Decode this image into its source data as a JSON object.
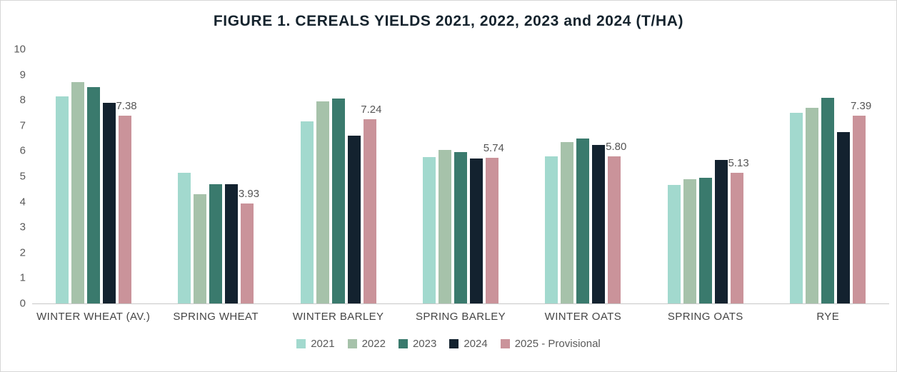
{
  "title": "FIGURE 1. CEREALS YIELDS 2021, 2022, 2023 and 2024 (T/HA)",
  "chart_data": {
    "type": "bar",
    "title": "FIGURE 1. CEREALS YIELDS 2021, 2022, 2023 and 2024 (T/HA)",
    "xlabel": "",
    "ylabel": "",
    "ylim": [
      0,
      10
    ],
    "yticks": [
      0,
      1,
      2,
      3,
      4,
      5,
      6,
      7,
      8,
      9,
      10
    ],
    "grid": false,
    "legend_position": "bottom",
    "categories": [
      "WINTER WHEAT (AV.)",
      "SPRING WHEAT",
      "WINTER BARLEY",
      "SPRING BARLEY",
      "WINTER OATS",
      "SPRING OATS",
      "RYE"
    ],
    "series": [
      {
        "name": "2021",
        "color": "#a2d9ce",
        "values": [
          8.15,
          5.15,
          7.15,
          5.75,
          5.8,
          4.65,
          7.5
        ]
      },
      {
        "name": "2022",
        "color": "#a6c2aa",
        "values": [
          8.7,
          4.3,
          7.95,
          6.05,
          6.35,
          4.9,
          7.7
        ]
      },
      {
        "name": "2023",
        "color": "#3a7a6d",
        "values": [
          8.5,
          4.7,
          8.05,
          5.95,
          6.5,
          4.95,
          8.1
        ]
      },
      {
        "name": "2024",
        "color": "#13222f",
        "values": [
          7.9,
          4.7,
          6.6,
          5.7,
          6.25,
          5.65,
          6.75
        ]
      },
      {
        "name": "2025 - Provisional",
        "color": "#ca939a",
        "values": [
          7.38,
          3.93,
          7.24,
          5.74,
          5.8,
          5.13,
          7.39
        ],
        "labels": [
          "7.38",
          "3.93",
          "7.24",
          "5.74",
          "5.80",
          "5.13",
          "7.39"
        ]
      }
    ],
    "data_labels_on_series": "2025 - Provisional"
  }
}
